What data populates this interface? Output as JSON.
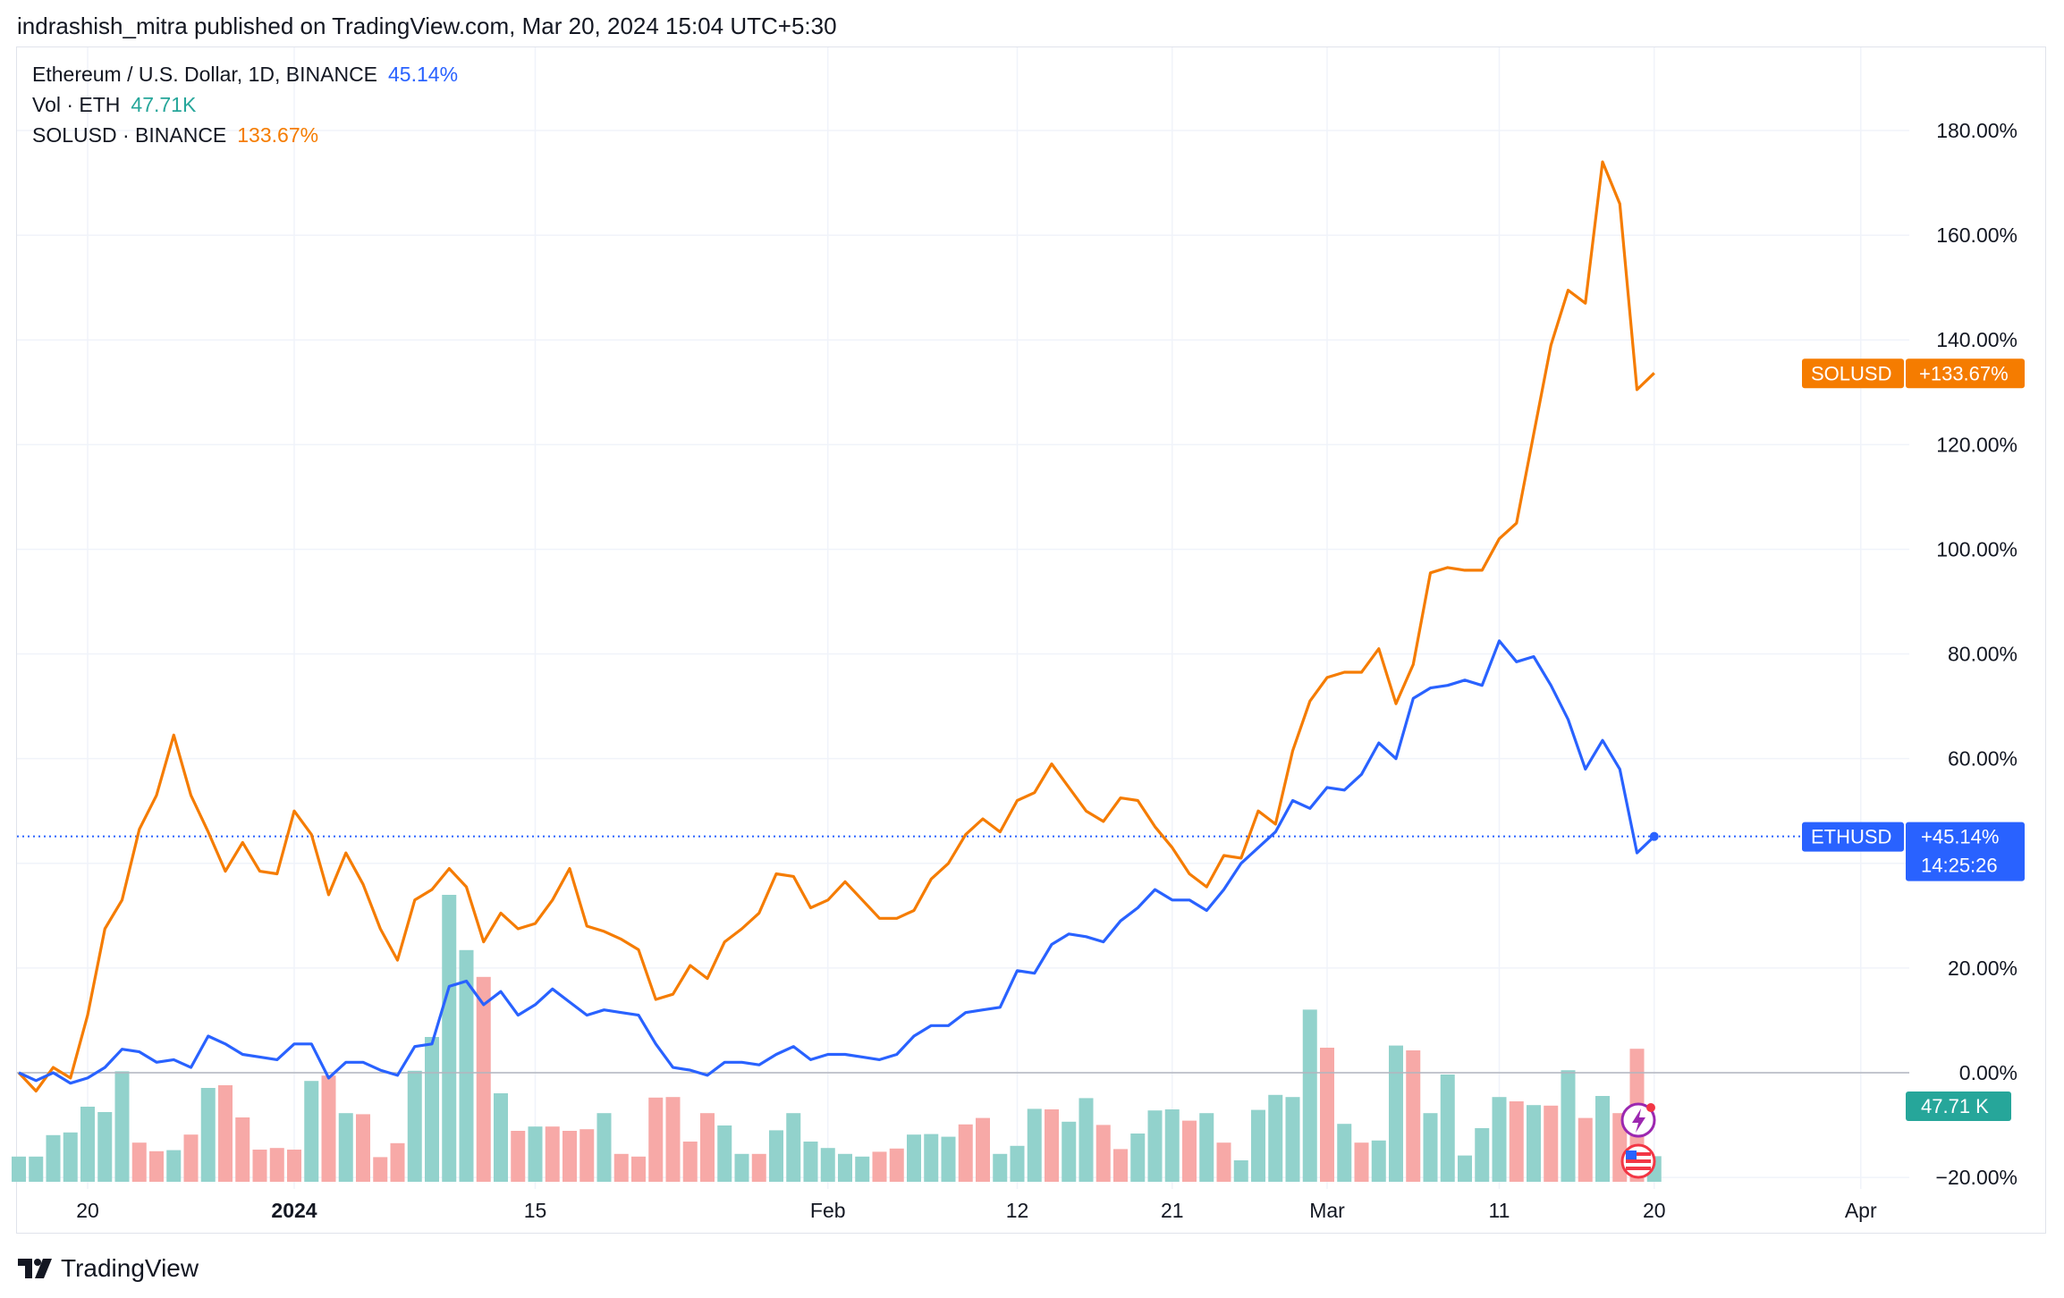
{
  "header": {
    "published": "indrashish_mitra published on TradingView.com, Mar 20, 2024 15:04 UTC+5:30"
  },
  "legend": {
    "eth_label": "Ethereum / U.S. Dollar, 1D, BINANCE",
    "eth_value": "45.14%",
    "vol_label": "Vol · ETH",
    "vol_value": "47.71K",
    "sol_label": "SOLUSD · BINANCE",
    "sol_value": "133.67%"
  },
  "price_tags": {
    "sol_name": "SOLUSD",
    "sol_value": "+133.67%",
    "eth_name": "ETHUSD",
    "eth_value": "+45.14%",
    "countdown": "14:25:26",
    "volume": "47.71 K"
  },
  "footer": {
    "brand": "TradingView"
  },
  "colors": {
    "eth": "#2962ff",
    "sol": "#f57c00",
    "vol_up": "#92d2cc",
    "vol_down": "#f7a9a7",
    "vol_tag": "#26a69a",
    "grid": "#f0f3fa"
  },
  "chart_data": {
    "type": "line",
    "y_scale": "percent change",
    "ylim": [
      -20,
      185
    ],
    "y_ticks": [
      "180.00%",
      "160.00%",
      "140.00%",
      "120.00%",
      "100.00%",
      "80.00%",
      "60.00%",
      "40.00%",
      "20.00%",
      "0.00%",
      "−20.00%"
    ],
    "y_tick_values": [
      180,
      160,
      140,
      120,
      100,
      80,
      60,
      40,
      20,
      0,
      -20
    ],
    "x_ticks": [
      {
        "label": "20",
        "date": "2023-12-20"
      },
      {
        "label": "2024",
        "date": "2024-01-01"
      },
      {
        "label": "15",
        "date": "2024-01-15"
      },
      {
        "label": "Feb",
        "date": "2024-02-01"
      },
      {
        "label": "12",
        "date": "2024-02-12"
      },
      {
        "label": "21",
        "date": "2024-02-21"
      },
      {
        "label": "Mar",
        "date": "2024-03-01"
      },
      {
        "label": "11",
        "date": "2024-03-11"
      },
      {
        "label": "20",
        "date": "2024-03-20"
      },
      {
        "label": "Apr",
        "date": "2024-04-01"
      }
    ],
    "x_range": [
      "2023-12-16",
      "2024-04-06"
    ],
    "dates": [
      "2023-12-16",
      "2023-12-17",
      "2023-12-18",
      "2023-12-19",
      "2023-12-20",
      "2023-12-21",
      "2023-12-22",
      "2023-12-23",
      "2023-12-24",
      "2023-12-25",
      "2023-12-26",
      "2023-12-27",
      "2023-12-28",
      "2023-12-29",
      "2023-12-30",
      "2023-12-31",
      "2024-01-01",
      "2024-01-02",
      "2024-01-03",
      "2024-01-04",
      "2024-01-05",
      "2024-01-06",
      "2024-01-07",
      "2024-01-08",
      "2024-01-09",
      "2024-01-10",
      "2024-01-11",
      "2024-01-12",
      "2024-01-13",
      "2024-01-14",
      "2024-01-15",
      "2024-01-16",
      "2024-01-17",
      "2024-01-18",
      "2024-01-19",
      "2024-01-20",
      "2024-01-21",
      "2024-01-22",
      "2024-01-23",
      "2024-01-24",
      "2024-01-25",
      "2024-01-26",
      "2024-01-27",
      "2024-01-28",
      "2024-01-29",
      "2024-01-30",
      "2024-01-31",
      "2024-02-01",
      "2024-02-02",
      "2024-02-03",
      "2024-02-04",
      "2024-02-05",
      "2024-02-06",
      "2024-02-07",
      "2024-02-08",
      "2024-02-09",
      "2024-02-10",
      "2024-02-11",
      "2024-02-12",
      "2024-02-13",
      "2024-02-14",
      "2024-02-15",
      "2024-02-16",
      "2024-02-17",
      "2024-02-18",
      "2024-02-19",
      "2024-02-20",
      "2024-02-21",
      "2024-02-22",
      "2024-02-23",
      "2024-02-24",
      "2024-02-25",
      "2024-02-26",
      "2024-02-27",
      "2024-02-28",
      "2024-02-29",
      "2024-03-01",
      "2024-03-02",
      "2024-03-03",
      "2024-03-04",
      "2024-03-05",
      "2024-03-06",
      "2024-03-07",
      "2024-03-08",
      "2024-03-09",
      "2024-03-10",
      "2024-03-11",
      "2024-03-12",
      "2024-03-13",
      "2024-03-14",
      "2024-03-15",
      "2024-03-16",
      "2024-03-17",
      "2024-03-18",
      "2024-03-19",
      "2024-03-20"
    ],
    "series": [
      {
        "name": "Ethereum / U.S. Dollar, 1D, BINANCE",
        "values": [
          0,
          -1.5,
          0,
          -2,
          -1,
          1,
          4.5,
          4,
          2,
          2.5,
          1,
          7,
          5.5,
          3.5,
          3,
          2.5,
          5.5,
          5.5,
          -1,
          2,
          2,
          0.5,
          -0.5,
          5,
          5.5,
          16.5,
          17.5,
          13,
          15.5,
          11,
          13,
          16,
          13.5,
          11,
          12,
          11.5,
          11,
          5.5,
          1,
          0.5,
          -0.5,
          2,
          2,
          1.5,
          3.5,
          5,
          2.5,
          3.5,
          3.5,
          3,
          2.5,
          3.5,
          7,
          9,
          9,
          11.5,
          12,
          12.5,
          19.5,
          19,
          24.5,
          26.5,
          26,
          25,
          29,
          31.5,
          35,
          33,
          33,
          31,
          35,
          40,
          43,
          46,
          52,
          50.5,
          54.5,
          54,
          57,
          63,
          60,
          71.5,
          73.5,
          74,
          75,
          74,
          82.5,
          78.5,
          79.5,
          74,
          67.5,
          58,
          63.5,
          58,
          42,
          45.14
        ]
      },
      {
        "name": "SOLUSD · BINANCE",
        "values": [
          0,
          -3.5,
          1,
          -1,
          11,
          27.5,
          33,
          46.5,
          53,
          64.5,
          53,
          46,
          38.5,
          44,
          38.5,
          38,
          50,
          45.5,
          34,
          42,
          36,
          27.5,
          21.5,
          33,
          35,
          39,
          35.5,
          25,
          30.5,
          27.5,
          28.5,
          33,
          39,
          28,
          27,
          25.5,
          23.5,
          14,
          15,
          20.5,
          18,
          25,
          27.5,
          30.5,
          38,
          37.5,
          31.5,
          33,
          36.5,
          33,
          29.5,
          29.5,
          31,
          37,
          40,
          45.5,
          48.5,
          46,
          52,
          53.5,
          59,
          54.5,
          50,
          48,
          52.5,
          52,
          47,
          43,
          38,
          35.5,
          41.5,
          41,
          50,
          47.5,
          61.5,
          71,
          75.5,
          76.5,
          76.5,
          81,
          70.5,
          78,
          95.5,
          96.5,
          96,
          96,
          102,
          105,
          122,
          139,
          149.5,
          147,
          174,
          166,
          130.5,
          133.67
        ]
      }
    ],
    "volume": {
      "name": "Vol · ETH",
      "last": 47.71,
      "unit": "K",
      "values": [
        47,
        47,
        87,
        92,
        140,
        130,
        206,
        73,
        57,
        59,
        88,
        175,
        180,
        120,
        60,
        63,
        60,
        188,
        198,
        128,
        126,
        46,
        72,
        207,
        270,
        535,
        432,
        382,
        165,
        95,
        103,
        103,
        95,
        98,
        128,
        52,
        47,
        157,
        158,
        75,
        128,
        105,
        52,
        52,
        96,
        128,
        75,
        63,
        52,
        47,
        56,
        62,
        88,
        89,
        84,
        107,
        119,
        52,
        67,
        136,
        135,
        112,
        156,
        106,
        61,
        90,
        133,
        135,
        114,
        128,
        73,
        40,
        134,
        162,
        158,
        321,
        250,
        108,
        73,
        77,
        254,
        245,
        128,
        200,
        49,
        100,
        158,
        150,
        143,
        142,
        208,
        119,
        160,
        128,
        248,
        47.71
      ],
      "direction": [
        "up",
        "up",
        "up",
        "up",
        "up",
        "up",
        "up",
        "down",
        "down",
        "up",
        "down",
        "up",
        "down",
        "down",
        "down",
        "down",
        "down",
        "up",
        "down",
        "up",
        "down",
        "down",
        "down",
        "up",
        "up",
        "up",
        "up",
        "down",
        "up",
        "down",
        "up",
        "down",
        "down",
        "down",
        "up",
        "down",
        "down",
        "down",
        "down",
        "down",
        "down",
        "up",
        "up",
        "down",
        "up",
        "up",
        "up",
        "up",
        "up",
        "up",
        "down",
        "down",
        "up",
        "up",
        "up",
        "down",
        "down",
        "up",
        "up",
        "up",
        "down",
        "up",
        "up",
        "down",
        "down",
        "up",
        "up",
        "up",
        "down",
        "up",
        "down",
        "up",
        "up",
        "up",
        "up",
        "up",
        "down",
        "up",
        "down",
        "up",
        "up",
        "down",
        "up",
        "up",
        "up",
        "up",
        "up",
        "down",
        "up",
        "down",
        "up",
        "down",
        "up",
        "down",
        "down",
        "up"
      ]
    }
  }
}
